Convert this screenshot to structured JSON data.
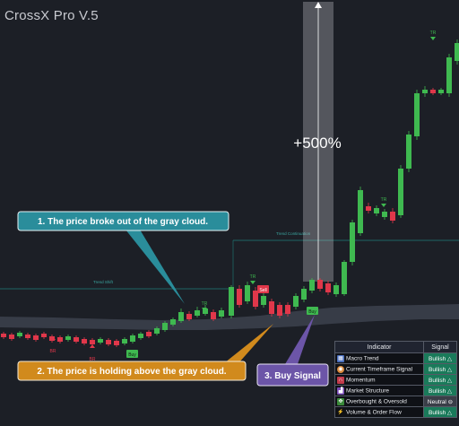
{
  "title": "CrossX Pro V.5",
  "gain_label": "+500%",
  "annotations": [
    {
      "text": "1. The price broke out of the gray cloud.",
      "color": "#2a8d9b"
    },
    {
      "text": "2. The price is holding above the gray cloud.",
      "color": "#d18a1d"
    },
    {
      "text": "3. Buy Signal",
      "color": "#6c55a8"
    }
  ],
  "chart_labels": {
    "trend_shift": "Trend Shift",
    "trend_continuation": "Trend Continuation",
    "sell": "Sell",
    "buy": "Buy",
    "tr": "TR",
    "br": "BR"
  },
  "table": {
    "headers": [
      "Indicator",
      "Signal"
    ],
    "rows": [
      {
        "icon": "macro-trend-icon",
        "indicator": "Macro Trend",
        "signal": "Bullish △",
        "color": "#1a7a5a"
      },
      {
        "icon": "timeframe-signal-icon",
        "indicator": "Current Timeframe Signal",
        "signal": "Bullish △",
        "color": "#1a7a5a"
      },
      {
        "icon": "momentum-icon",
        "indicator": "Momentum",
        "signal": "Bullish △",
        "color": "#1a7a5a"
      },
      {
        "icon": "market-structure-icon",
        "indicator": "Market Structure",
        "signal": "Bullish △",
        "color": "#1a7a5a"
      },
      {
        "icon": "overbought-oversold-icon",
        "indicator": "Overbought & Oversold",
        "signal": "Neutral ⊖",
        "color": "#3a3e48"
      },
      {
        "icon": "volume-flow-icon",
        "indicator": "Volume & Order Flow",
        "signal": "Bullish △",
        "color": "#1a7a5a"
      }
    ]
  },
  "colors": {
    "bull": "#3fb950",
    "bear": "#e0374a",
    "cloud": "#3b3f4b",
    "teal_line": "#1f7f7a"
  }
}
